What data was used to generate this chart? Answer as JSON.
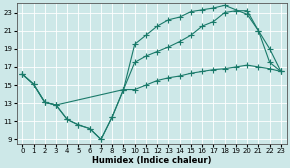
{
  "xlabel": "Humidex (Indice chaleur)",
  "bg_color": "#cde8e8",
  "grid_color": "#ffffff",
  "line_color": "#1a7a6a",
  "xlim": [
    -0.5,
    23.5
  ],
  "ylim": [
    8.5,
    24.0
  ],
  "xticks": [
    0,
    1,
    2,
    3,
    4,
    5,
    6,
    7,
    8,
    9,
    10,
    11,
    12,
    13,
    14,
    15,
    16,
    17,
    18,
    19,
    20,
    21,
    22,
    23
  ],
  "yticks": [
    9,
    11,
    13,
    15,
    17,
    19,
    21,
    23
  ],
  "line1_x": [
    0,
    1,
    2,
    3,
    4,
    5,
    6,
    7,
    8,
    9,
    10,
    11,
    12,
    13,
    14,
    15,
    16,
    17,
    18,
    20,
    21,
    22,
    23
  ],
  "line1_y": [
    16.2,
    15.1,
    13.1,
    12.8,
    11.2,
    10.6,
    10.2,
    9.0,
    11.5,
    14.5,
    19.5,
    20.5,
    21.5,
    22.2,
    22.5,
    23.1,
    23.3,
    23.5,
    23.8,
    22.8,
    21.0,
    19.0,
    16.5
  ],
  "line2_x": [
    0,
    1,
    2,
    3,
    9,
    10,
    11,
    12,
    13,
    14,
    15,
    16,
    17,
    18,
    19,
    20,
    21,
    22,
    23
  ],
  "line2_y": [
    16.2,
    15.1,
    13.1,
    12.8,
    14.5,
    17.5,
    18.2,
    18.7,
    19.2,
    19.8,
    20.5,
    21.5,
    22.0,
    23.0,
    23.2,
    23.2,
    21.0,
    17.5,
    16.5
  ],
  "line3_x": [
    0,
    1,
    2,
    3,
    4,
    5,
    6,
    7,
    8,
    9,
    10,
    11,
    12,
    13,
    14,
    15,
    16,
    17,
    18,
    19,
    20,
    21,
    22,
    23
  ],
  "line3_y": [
    16.2,
    15.1,
    13.1,
    12.8,
    11.2,
    10.6,
    10.2,
    9.0,
    11.5,
    14.5,
    14.5,
    15.0,
    15.5,
    15.8,
    16.0,
    16.3,
    16.5,
    16.7,
    16.8,
    17.0,
    17.2,
    17.0,
    16.8,
    16.5
  ]
}
